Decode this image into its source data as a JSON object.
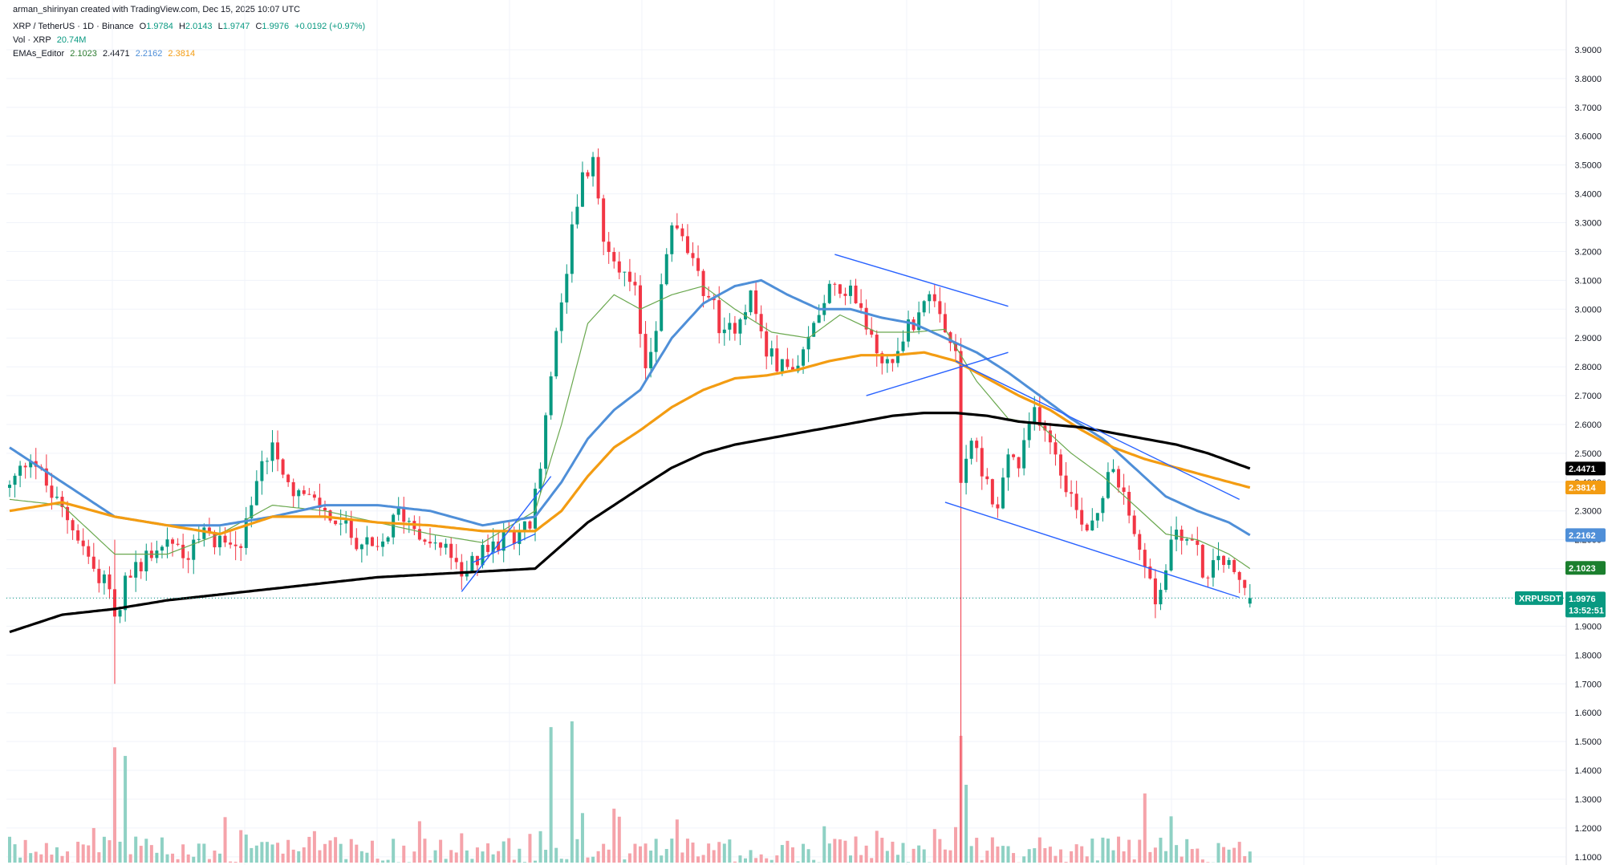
{
  "header": {
    "credit": "arman_shirinyan created with TradingView.com, Dec 15, 2025 10:07 UTC",
    "symbol": "XRP / TetherUS · 1D · Binance",
    "ohlc": {
      "o_label": "O",
      "o": "1.9784",
      "h_label": "H",
      "h": "2.0143",
      "l_label": "L",
      "l": "1.9747",
      "c_label": "C",
      "c": "1.9976",
      "change": "+0.0192 (+0.97%)"
    },
    "vol_label": "Vol · XRP",
    "vol_value": "20.74M",
    "ema_label": "EMAs_Editor",
    "ema_values": [
      "2.1023",
      "2.4471",
      "2.2162",
      "2.3814"
    ]
  },
  "price_tags": [
    {
      "name": "ema-200-tag",
      "label": "2.4471",
      "price": 2.4471,
      "color": "#000000",
      "text_color": "#ffffff"
    },
    {
      "name": "ema-100-tag",
      "label": "2.3814",
      "price": 2.3814,
      "color": "#f39c12",
      "text_color": "#ffffff"
    },
    {
      "name": "ema-50-tag",
      "label": "2.2162",
      "price": 2.2162,
      "color": "#4f8fd8",
      "text_color": "#ffffff"
    },
    {
      "name": "ema-20-tag",
      "label": "2.1023",
      "price": 2.1023,
      "color": "#1b7f2e",
      "text_color": "#ffffff"
    },
    {
      "name": "last-price-tag",
      "label": "1.9976",
      "sublabel": "13:52:51",
      "price": 1.9976,
      "color": "#089981",
      "text_color": "#ffffff"
    }
  ],
  "symbol_tag": "XRPUSDT",
  "colors": {
    "up": "#089981",
    "down": "#f23645",
    "vol_up": "#8fd1c4",
    "vol_down": "#f5a3aa",
    "ema20": "#6aa84f",
    "ema50": "#4f8fd8",
    "ema100": "#f39c12",
    "ema200": "#000000",
    "trend": "#2962ff"
  },
  "chart_data": {
    "type": "candlestick",
    "symbol": "XRPUSDT",
    "timeframe": "1D",
    "ylim": [
      1.08,
      3.95
    ],
    "y_ticks": [
      1.1,
      1.2,
      1.3,
      1.4,
      1.5,
      1.6,
      1.7,
      1.8,
      1.9,
      2.0,
      2.1,
      2.2,
      2.3,
      2.4,
      2.5,
      2.6,
      2.7,
      2.8,
      2.9,
      3.0,
      3.1,
      3.2,
      3.3,
      3.4,
      3.5,
      3.6,
      3.7,
      3.8,
      3.9
    ],
    "y_tick_labels": [
      "1.1000",
      "1.2000",
      "1.3000",
      "1.4000",
      "1.5000",
      "1.6000",
      "1.7000",
      "1.8000",
      "1.9000",
      "2.0000",
      "2.1000",
      "2.2000",
      "2.3000",
      "2.4000",
      "2.5000",
      "2.6000",
      "2.7000",
      "2.8000",
      "2.9000",
      "3.0000",
      "3.1000",
      "3.2000",
      "3.3000",
      "3.4000",
      "3.5000",
      "3.6000",
      "3.7000",
      "3.8000",
      "3.9000"
    ],
    "price_path": [
      [
        0,
        2.38
      ],
      [
        4,
        2.5
      ],
      [
        8,
        2.35
      ],
      [
        12,
        2.25
      ],
      [
        16,
        2.1
      ],
      [
        19,
        2.05
      ],
      [
        20,
        1.92
      ],
      [
        22,
        2.05
      ],
      [
        26,
        2.15
      ],
      [
        30,
        2.2
      ],
      [
        34,
        2.15
      ],
      [
        37,
        2.22
      ],
      [
        40,
        2.2
      ],
      [
        44,
        2.18
      ],
      [
        46,
        2.3
      ],
      [
        48,
        2.45
      ],
      [
        50,
        2.55
      ],
      [
        53,
        2.4
      ],
      [
        56,
        2.35
      ],
      [
        60,
        2.3
      ],
      [
        63,
        2.25
      ],
      [
        66,
        2.2
      ],
      [
        70,
        2.15
      ],
      [
        74,
        2.3
      ],
      [
        77,
        2.25
      ],
      [
        81,
        2.18
      ],
      [
        84,
        2.15
      ],
      [
        86,
        2.05
      ],
      [
        88,
        2.12
      ],
      [
        92,
        2.18
      ],
      [
        96,
        2.22
      ],
      [
        99,
        2.25
      ],
      [
        101,
        2.45
      ],
      [
        103,
        2.8
      ],
      [
        105,
        3.0
      ],
      [
        107,
        3.3
      ],
      [
        109,
        3.45
      ],
      [
        111,
        3.5
      ],
      [
        113,
        3.25
      ],
      [
        115,
        3.2
      ],
      [
        117,
        3.1
      ],
      [
        119,
        3.05
      ],
      [
        121,
        2.8
      ],
      [
        123,
        2.95
      ],
      [
        126,
        3.3
      ],
      [
        129,
        3.2
      ],
      [
        131,
        3.1
      ],
      [
        133,
        3.05
      ],
      [
        136,
        2.9
      ],
      [
        138,
        2.95
      ],
      [
        141,
        3.05
      ],
      [
        144,
        2.85
      ],
      [
        147,
        2.8
      ],
      [
        150,
        2.78
      ],
      [
        153,
        2.95
      ],
      [
        155,
        3.05
      ],
      [
        157,
        3.1
      ],
      [
        160,
        3.05
      ],
      [
        162,
        3.0
      ],
      [
        165,
        2.85
      ],
      [
        168,
        2.8
      ],
      [
        170,
        2.92
      ],
      [
        172,
        2.95
      ],
      [
        174,
        3.05
      ],
      [
        176,
        3.0
      ],
      [
        178,
        2.9
      ],
      [
        180,
        2.85
      ],
      [
        181,
        2.4
      ],
      [
        183,
        2.55
      ],
      [
        186,
        2.4
      ],
      [
        188,
        2.3
      ],
      [
        190,
        2.5
      ],
      [
        192,
        2.45
      ],
      [
        195,
        2.65
      ],
      [
        197,
        2.6
      ],
      [
        199,
        2.5
      ],
      [
        201,
        2.4
      ],
      [
        203,
        2.3
      ],
      [
        205,
        2.25
      ],
      [
        207,
        2.3
      ],
      [
        209,
        2.45
      ],
      [
        211,
        2.4
      ],
      [
        214,
        2.2
      ],
      [
        216,
        2.1
      ],
      [
        218,
        1.98
      ],
      [
        220,
        2.1
      ],
      [
        222,
        2.25
      ],
      [
        224,
        2.2
      ],
      [
        226,
        2.15
      ],
      [
        228,
        2.05
      ],
      [
        230,
        2.15
      ],
      [
        232,
        2.1
      ],
      [
        234,
        2.05
      ],
      [
        236,
        1.9976
      ]
    ],
    "ema20": [
      [
        0,
        2.34
      ],
      [
        10,
        2.32
      ],
      [
        20,
        2.15
      ],
      [
        30,
        2.15
      ],
      [
        40,
        2.22
      ],
      [
        50,
        2.32
      ],
      [
        60,
        2.3
      ],
      [
        70,
        2.26
      ],
      [
        80,
        2.22
      ],
      [
        90,
        2.19
      ],
      [
        100,
        2.3
      ],
      [
        105,
        2.6
      ],
      [
        110,
        2.95
      ],
      [
        115,
        3.05
      ],
      [
        120,
        3.0
      ],
      [
        126,
        3.05
      ],
      [
        132,
        3.08
      ],
      [
        138,
        3.0
      ],
      [
        145,
        2.92
      ],
      [
        152,
        2.9
      ],
      [
        158,
        2.98
      ],
      [
        165,
        2.92
      ],
      [
        172,
        2.92
      ],
      [
        178,
        2.93
      ],
      [
        184,
        2.75
      ],
      [
        190,
        2.62
      ],
      [
        196,
        2.6
      ],
      [
        202,
        2.5
      ],
      [
        208,
        2.42
      ],
      [
        214,
        2.32
      ],
      [
        220,
        2.22
      ],
      [
        226,
        2.2
      ],
      [
        232,
        2.15
      ],
      [
        236,
        2.1
      ]
    ],
    "ema50": [
      [
        0,
        2.52
      ],
      [
        10,
        2.4
      ],
      [
        20,
        2.28
      ],
      [
        30,
        2.25
      ],
      [
        40,
        2.25
      ],
      [
        50,
        2.28
      ],
      [
        60,
        2.32
      ],
      [
        70,
        2.32
      ],
      [
        80,
        2.3
      ],
      [
        90,
        2.25
      ],
      [
        100,
        2.28
      ],
      [
        105,
        2.4
      ],
      [
        110,
        2.55
      ],
      [
        115,
        2.65
      ],
      [
        120,
        2.72
      ],
      [
        126,
        2.9
      ],
      [
        132,
        3.02
      ],
      [
        138,
        3.08
      ],
      [
        143,
        3.1
      ],
      [
        148,
        3.05
      ],
      [
        154,
        3.0
      ],
      [
        160,
        3.0
      ],
      [
        166,
        2.97
      ],
      [
        172,
        2.95
      ],
      [
        178,
        2.9
      ],
      [
        184,
        2.85
      ],
      [
        190,
        2.78
      ],
      [
        196,
        2.7
      ],
      [
        202,
        2.62
      ],
      [
        208,
        2.55
      ],
      [
        214,
        2.45
      ],
      [
        220,
        2.35
      ],
      [
        226,
        2.3
      ],
      [
        232,
        2.26
      ],
      [
        236,
        2.216
      ]
    ],
    "ema100": [
      [
        0,
        2.3
      ],
      [
        10,
        2.33
      ],
      [
        20,
        2.28
      ],
      [
        30,
        2.25
      ],
      [
        40,
        2.22
      ],
      [
        50,
        2.28
      ],
      [
        60,
        2.28
      ],
      [
        70,
        2.26
      ],
      [
        80,
        2.25
      ],
      [
        90,
        2.23
      ],
      [
        100,
        2.23
      ],
      [
        105,
        2.3
      ],
      [
        110,
        2.42
      ],
      [
        115,
        2.52
      ],
      [
        120,
        2.58
      ],
      [
        126,
        2.66
      ],
      [
        132,
        2.72
      ],
      [
        138,
        2.76
      ],
      [
        144,
        2.77
      ],
      [
        150,
        2.79
      ],
      [
        156,
        2.82
      ],
      [
        162,
        2.84
      ],
      [
        168,
        2.84
      ],
      [
        174,
        2.85
      ],
      [
        180,
        2.82
      ],
      [
        186,
        2.76
      ],
      [
        192,
        2.7
      ],
      [
        198,
        2.65
      ],
      [
        204,
        2.58
      ],
      [
        210,
        2.52
      ],
      [
        216,
        2.48
      ],
      [
        222,
        2.45
      ],
      [
        228,
        2.42
      ],
      [
        236,
        2.381
      ]
    ],
    "ema200": [
      [
        0,
        1.88
      ],
      [
        10,
        1.94
      ],
      [
        20,
        1.96
      ],
      [
        30,
        1.99
      ],
      [
        40,
        2.01
      ],
      [
        50,
        2.03
      ],
      [
        60,
        2.05
      ],
      [
        70,
        2.07
      ],
      [
        80,
        2.08
      ],
      [
        90,
        2.09
      ],
      [
        100,
        2.1
      ],
      [
        105,
        2.18
      ],
      [
        110,
        2.26
      ],
      [
        115,
        2.32
      ],
      [
        120,
        2.38
      ],
      [
        126,
        2.45
      ],
      [
        132,
        2.5
      ],
      [
        138,
        2.53
      ],
      [
        144,
        2.55
      ],
      [
        150,
        2.57
      ],
      [
        156,
        2.59
      ],
      [
        162,
        2.61
      ],
      [
        168,
        2.63
      ],
      [
        174,
        2.64
      ],
      [
        180,
        2.64
      ],
      [
        186,
        2.63
      ],
      [
        192,
        2.61
      ],
      [
        198,
        2.6
      ],
      [
        204,
        2.59
      ],
      [
        210,
        2.57
      ],
      [
        216,
        2.55
      ],
      [
        222,
        2.53
      ],
      [
        228,
        2.5
      ],
      [
        236,
        2.447
      ]
    ],
    "trendlines": [
      [
        [
          86,
          2.02
        ],
        [
          103,
          2.42
        ]
      ],
      [
        [
          88,
          2.12
        ],
        [
          100,
          2.22
        ]
      ],
      [
        [
          157,
          3.19
        ],
        [
          190,
          3.01
        ]
      ],
      [
        [
          163,
          2.7
        ],
        [
          190,
          2.85
        ]
      ],
      [
        [
          180,
          2.82
        ],
        [
          234,
          2.34
        ]
      ],
      [
        [
          178,
          2.33
        ],
        [
          234,
          2.0
        ]
      ]
    ],
    "spikes": [
      [
        20,
        1.7,
        2.2
      ],
      [
        181,
        1.08,
        2.9
      ]
    ],
    "volume_peaks": [
      [
        20,
        1.48
      ],
      [
        22,
        1.45
      ],
      [
        103,
        1.55
      ],
      [
        107,
        1.57
      ],
      [
        181,
        1.52
      ],
      [
        182,
        1.35
      ],
      [
        216,
        1.32
      ]
    ]
  }
}
